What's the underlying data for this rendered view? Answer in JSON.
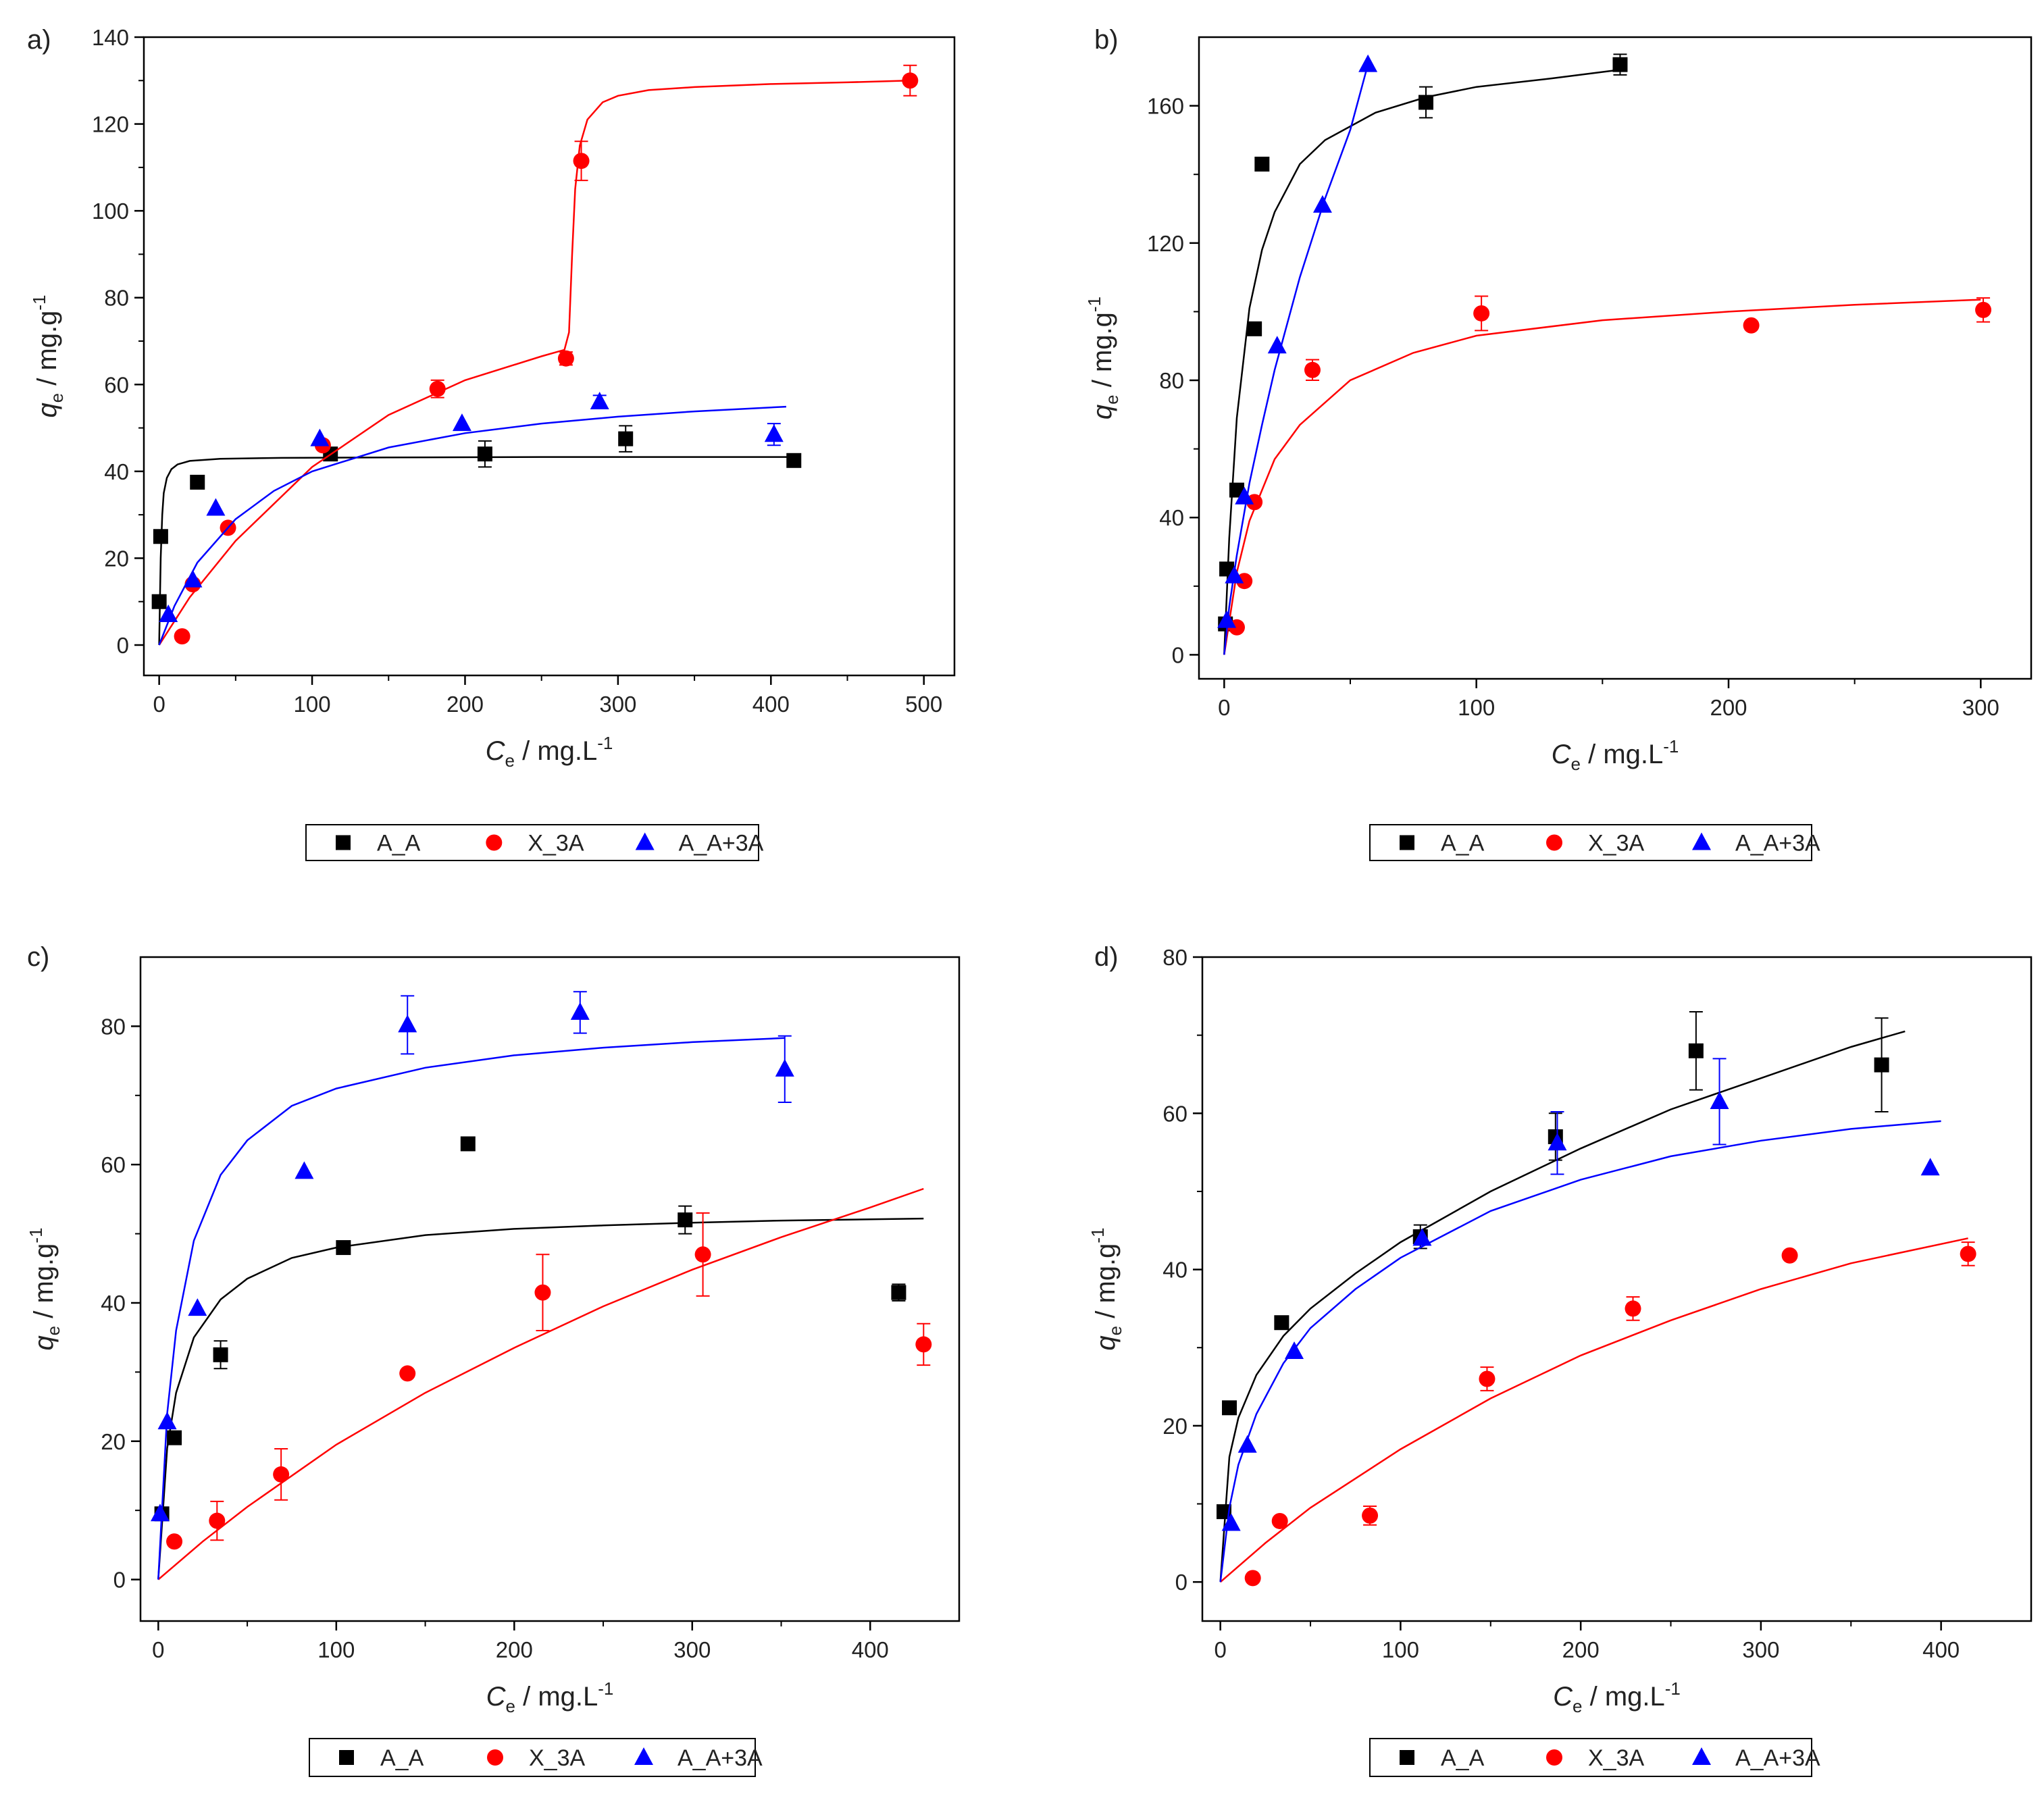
{
  "figure": {
    "series_style": [
      {
        "name": "A_A",
        "color": "#000000",
        "marker": "square"
      },
      {
        "name": "X_3A",
        "color": "#ff0000",
        "marker": "circle"
      },
      {
        "name": "A_A+3A",
        "color": "#0000ff",
        "marker": "triangle"
      }
    ]
  },
  "chart_data": [
    {
      "panel": "a)",
      "type": "scatter",
      "xlabel": "C",
      "xlabel_sub": "e",
      "xlabel_unit": " / mg.L",
      "xlabel_sup": "-1",
      "ylabel": "q",
      "ylabel_sub": "e",
      "ylabel_unit": " / mg.g",
      "ylabel_sup": "-1",
      "xlim": [
        -10,
        520
      ],
      "ylim": [
        -7,
        140
      ],
      "xticks": [
        0,
        100,
        200,
        300,
        400,
        500
      ],
      "yticks": [
        0,
        20,
        40,
        60,
        80,
        100,
        120,
        140
      ],
      "legend": [
        "A_A",
        "X_3A",
        "A_A+3A"
      ],
      "series": [
        {
          "name": "A_A",
          "x": [
            0,
            1,
            25,
            112,
            213,
            305,
            415
          ],
          "y": [
            10,
            25,
            37.5,
            44,
            44,
            47.5,
            42.5
          ],
          "err": [
            0,
            0,
            0,
            0,
            3,
            3,
            0
          ],
          "fit": {
            "x": [
              0,
              1,
              2,
              3,
              5,
              8,
              12,
              20,
              40,
              80,
              150,
              250,
              350,
              415
            ],
            "y": [
              0,
              20,
              30,
              35,
              38.5,
              40.5,
              41.6,
              42.4,
              42.9,
              43.1,
              43.2,
              43.3,
              43.3,
              43.3
            ]
          }
        },
        {
          "name": "X_3A",
          "x": [
            15,
            22,
            45,
            107,
            182,
            266,
            276,
            491
          ],
          "y": [
            2,
            14,
            27,
            46,
            59,
            66,
            111.5,
            130
          ],
          "err": [
            0,
            0,
            0,
            0,
            2,
            1.5,
            4.5,
            3.5
          ],
          "fit": {
            "x": [
              0,
              20,
              50,
              100,
              150,
              200,
              250,
              265,
              268,
              270,
              272,
              275,
              280,
              290,
              300,
              320,
              350,
              400,
              450,
              491
            ],
            "y": [
              0,
              11,
              24,
              41,
              53,
              61,
              66.5,
              68,
              72,
              90,
              105,
              115,
              121,
              125,
              126.5,
              127.8,
              128.5,
              129.2,
              129.6,
              130
            ]
          }
        },
        {
          "name": "A_A+3A",
          "x": [
            6,
            22,
            37,
            105,
            198,
            288,
            402
          ],
          "y": [
            7,
            15,
            31.5,
            47.5,
            51,
            56,
            48.5
          ],
          "err": [
            0,
            0,
            0,
            0,
            0,
            1.5,
            2.5
          ],
          "fit": {
            "x": [
              0,
              10,
              25,
              50,
              75,
              100,
              150,
              200,
              250,
              300,
              350,
              410
            ],
            "y": [
              0,
              9,
              19,
              29,
              35.5,
              40,
              45.5,
              48.8,
              51,
              52.6,
              53.8,
              54.9
            ]
          }
        }
      ]
    },
    {
      "panel": "b)",
      "type": "scatter",
      "xlabel": "C",
      "xlabel_sub": "e",
      "xlabel_unit": " / mg.L",
      "xlabel_sup": "-1",
      "ylabel": "q",
      "ylabel_sub": "e",
      "ylabel_unit": " / mg.g",
      "ylabel_sup": "-1",
      "xlim": [
        -10,
        320
      ],
      "ylim": [
        -7,
        180
      ],
      "xticks": [
        0,
        100,
        200,
        300
      ],
      "yticks": [
        0,
        40,
        80,
        120,
        160
      ],
      "legend": [
        "A_A",
        "X_3A",
        "A_A+3A"
      ],
      "series": [
        {
          "name": "A_A",
          "x": [
            0.5,
            1,
            5,
            12,
            15,
            80,
            157
          ],
          "y": [
            9,
            25,
            48,
            95,
            143,
            161,
            172
          ],
          "err": [
            0,
            0,
            0,
            0,
            0,
            4.5,
            3
          ],
          "fit": {
            "x": [
              0,
              2,
              5,
              10,
              15,
              20,
              30,
              40,
              60,
              80,
              100,
              130,
              157
            ],
            "y": [
              0,
              34,
              69,
              101,
              118,
              129,
              143,
              150,
              158,
              162.5,
              165.5,
              168,
              170.5
            ]
          }
        },
        {
          "name": "X_3A",
          "x": [
            5,
            8,
            12,
            35,
            102,
            209,
            301
          ],
          "y": [
            8,
            21.5,
            44.5,
            83,
            99.5,
            96,
            100.5
          ],
          "err": [
            0,
            0,
            0,
            3,
            5,
            0,
            3.5
          ],
          "fit": {
            "x": [
              0,
              5,
              10,
              20,
              30,
              50,
              75,
              100,
              150,
              200,
              250,
              300
            ],
            "y": [
              0,
              24,
              39,
              57,
              67,
              80,
              88,
              93,
              97.5,
              100,
              102,
              103.5
            ]
          }
        },
        {
          "name": "A_A+3A",
          "x": [
            1,
            4,
            8,
            21,
            39,
            57
          ],
          "y": [
            10,
            23,
            46,
            90,
            131,
            172
          ],
          "err": [
            0,
            0,
            0,
            0,
            0,
            0
          ],
          "fit": {
            "x": [
              0,
              2,
              5,
              10,
              15,
              20,
              30,
              40,
              50,
              57
            ],
            "y": [
              0,
              14,
              29,
              50,
              67,
              83,
              110,
              133,
              153,
              172
            ]
          }
        }
      ]
    },
    {
      "panel": "c)",
      "type": "scatter",
      "xlabel": "C",
      "xlabel_sub": "e",
      "xlabel_unit": " / mg.L",
      "xlabel_sup": "-1",
      "ylabel": "q",
      "ylabel_sub": "e",
      "ylabel_unit": " / mg.g",
      "ylabel_sup": "-1",
      "xlim": [
        -10,
        450
      ],
      "ylim": [
        -6,
        90
      ],
      "xticks": [
        0,
        100,
        200,
        300,
        400
      ],
      "yticks": [
        0,
        20,
        40,
        60,
        80
      ],
      "legend": [
        "A_A",
        "X_3A",
        "A_A+3A"
      ],
      "series": [
        {
          "name": "A_A",
          "x": [
            2,
            9,
            35,
            104,
            174,
            296,
            416
          ],
          "y": [
            9.5,
            20.5,
            32.5,
            48,
            63,
            52,
            41.5
          ],
          "err": [
            0,
            0,
            2,
            0,
            0,
            2,
            1.2
          ],
          "fit": {
            "x": [
              0,
              5,
              10,
              20,
              35,
              50,
              75,
              100,
              150,
              200,
              250,
              300,
              350,
              430
            ],
            "y": [
              0,
              19,
              27,
              35,
              40.5,
              43.5,
              46.5,
              48,
              49.8,
              50.7,
              51.2,
              51.6,
              51.9,
              52.2
            ]
          }
        },
        {
          "name": "X_3A",
          "x": [
            9,
            33,
            69,
            140,
            216,
            306,
            430
          ],
          "y": [
            5.5,
            8.5,
            15.2,
            29.8,
            41.5,
            47,
            34
          ],
          "err": [
            0,
            2.8,
            3.7,
            0,
            5.5,
            6,
            3
          ],
          "fit": {
            "x": [
              0,
              25,
              50,
              100,
              150,
              200,
              250,
              300,
              350,
              400,
              430
            ],
            "y": [
              0,
              5.5,
              10.5,
              19.5,
              27,
              33.5,
              39.5,
              44.8,
              49.5,
              53.8,
              56.5
            ]
          }
        },
        {
          "name": "A_A+3A",
          "x": [
            1,
            5,
            22,
            82,
            140,
            237,
            352
          ],
          "y": [
            9.5,
            22.8,
            39.2,
            59,
            80.2,
            82,
            73.8
          ],
          "err": [
            0,
            0,
            0,
            0,
            4.2,
            3,
            4.8
          ],
          "fit": {
            "x": [
              0,
              5,
              10,
              20,
              35,
              50,
              75,
              100,
              150,
              200,
              250,
              300,
              352
            ],
            "y": [
              0,
              24,
              36,
              49,
              58.5,
              63.5,
              68.5,
              71,
              74,
              75.8,
              76.9,
              77.7,
              78.3
            ]
          }
        }
      ]
    },
    {
      "panel": "d)",
      "type": "scatter",
      "xlabel": "C",
      "xlabel_sub": "e",
      "xlabel_unit": " / mg.L",
      "xlabel_sup": "-1",
      "ylabel": "q",
      "ylabel_sub": "e",
      "ylabel_unit": " / mg.g",
      "ylabel_sup": "-1",
      "xlim": [
        -10,
        450
      ],
      "ylim": [
        -5,
        80
      ],
      "xticks": [
        0,
        100,
        200,
        300,
        400
      ],
      "yticks": [
        0,
        20,
        40,
        60,
        80
      ],
      "legend": [
        "A_A",
        "X_3A",
        "A_A+3A"
      ],
      "series": [
        {
          "name": "A_A",
          "x": [
            2,
            5,
            34,
            111,
            186,
            264,
            367
          ],
          "y": [
            9,
            22.3,
            33.2,
            44.2,
            57,
            68,
            66.2
          ],
          "err": [
            0,
            0,
            0,
            1.5,
            3,
            5,
            6
          ],
          "fit": {
            "x": [
              0,
              5,
              10,
              20,
              35,
              50,
              75,
              100,
              150,
              200,
              250,
              300,
              350,
              380
            ],
            "y": [
              0,
              16,
              21,
              26.5,
              31.5,
              35,
              39.5,
              43.5,
              50,
              55.5,
              60.5,
              64.5,
              68.5,
              70.5
            ]
          }
        },
        {
          "name": "X_3A",
          "x": [
            18,
            33,
            83,
            148,
            229,
            316,
            415
          ],
          "y": [
            0.5,
            7.8,
            8.5,
            26,
            35,
            41.8,
            42
          ],
          "err": [
            0,
            0,
            1.2,
            1.5,
            1.5,
            0,
            1.5
          ],
          "fit": {
            "x": [
              0,
              25,
              50,
              100,
              150,
              200,
              250,
              300,
              350,
              415
            ],
            "y": [
              0,
              5,
              9.5,
              17,
              23.5,
              29,
              33.5,
              37.5,
              40.8,
              44
            ]
          }
        },
        {
          "name": "A_A+3A",
          "x": [
            6,
            15,
            41,
            112,
            187,
            277,
            394
          ],
          "y": [
            7.5,
            17.5,
            29.5,
            44,
            56.2,
            61.5,
            53
          ],
          "err": [
            0,
            0,
            0,
            0,
            4,
            5.5,
            0
          ],
          "fit": {
            "x": [
              0,
              5,
              10,
              20,
              35,
              50,
              75,
              100,
              150,
              200,
              250,
              300,
              350,
              400
            ],
            "y": [
              0,
              9.5,
              15,
              21.5,
              28,
              32.5,
              37.5,
              41.5,
              47.5,
              51.5,
              54.5,
              56.5,
              58,
              59
            ]
          }
        }
      ]
    }
  ]
}
